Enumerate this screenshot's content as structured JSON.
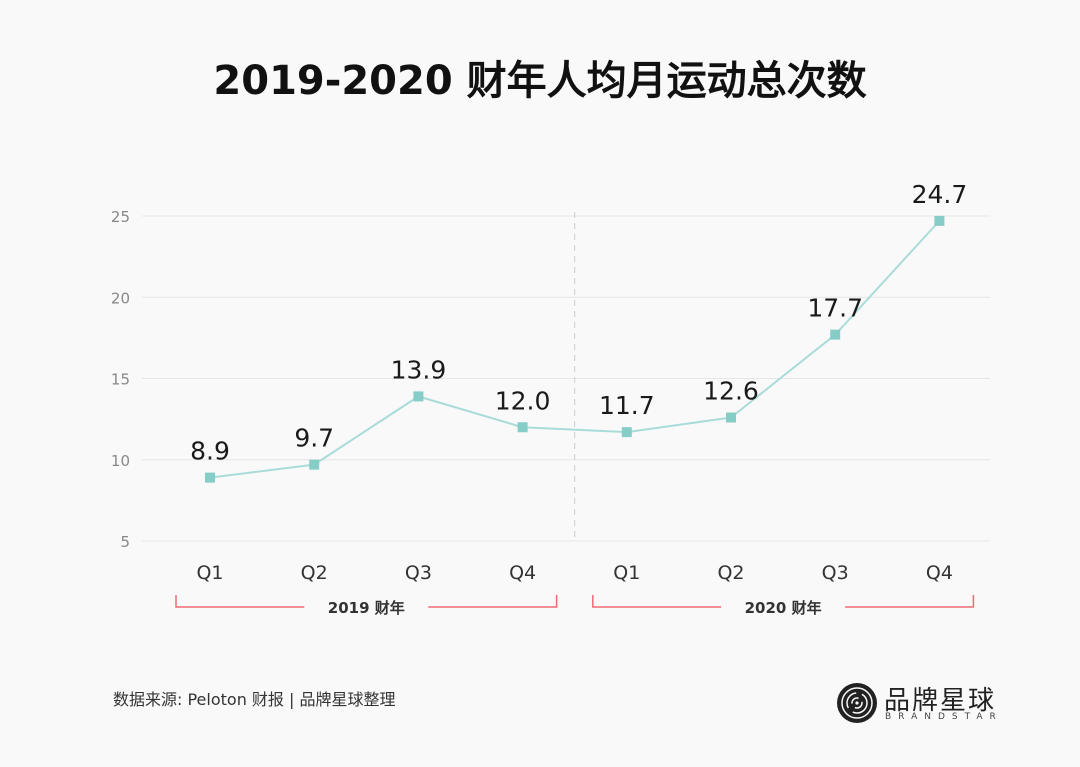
{
  "chart_data": {
    "type": "line",
    "title": "2019-2020 财年人均月运动总次数",
    "xlabel": "",
    "ylabel": "",
    "categories": [
      "Q1",
      "Q2",
      "Q3",
      "Q4",
      "Q1",
      "Q2",
      "Q3",
      "Q4"
    ],
    "series": [
      {
        "name": "人均月运动总次数",
        "values": [
          8.9,
          9.7,
          13.9,
          12.0,
          11.7,
          12.6,
          17.7,
          24.7
        ],
        "data_labels": [
          "8.9",
          "9.7",
          "13.9",
          "12.0",
          "11.7",
          "12.6",
          "17.7",
          "24.7"
        ],
        "color": "#86cdc8"
      }
    ],
    "ylim": [
      5,
      25
    ],
    "yticks": [
      5,
      10,
      15,
      20,
      25
    ],
    "ytick_labels": [
      "5",
      "10",
      "15",
      "20",
      "25"
    ],
    "grid": true,
    "legend": "none",
    "groups": [
      {
        "label": "2019 财年",
        "categories": [
          0,
          3
        ]
      },
      {
        "label": "2020 财年",
        "categories": [
          4,
          7
        ]
      }
    ],
    "group_divider_after_index": 3,
    "colors": {
      "line": "#a9dcd8",
      "marker": "#86cdc8",
      "grid": "#e6e6e6",
      "bracket": "#ef6b73",
      "divider": "#cccccc"
    }
  },
  "footer": {
    "source": "数据来源: Peloton 财报 | 品牌星球整理",
    "logo_text": "品牌星球",
    "logo_sub": "BRANDSTAR"
  }
}
